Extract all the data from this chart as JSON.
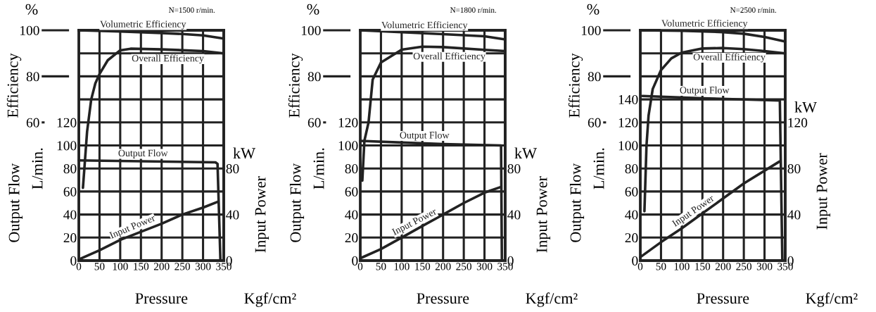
{
  "chart_data": [
    {
      "type": "line",
      "xlabel": "Pressure",
      "ylabel": "Efficiency",
      "y2label": "Input Power",
      "y3label": "Output Flow",
      "annotations": [
        "N=1500 r/min.",
        "%",
        "L/min.",
        "kW",
        "Kgf/cm²"
      ],
      "xlim": [
        0,
        350
      ],
      "xticks": [
        0,
        50,
        100,
        150,
        200,
        250,
        300,
        350
      ],
      "ylim": [
        0,
        100
      ],
      "yticks": [
        60,
        80,
        100
      ],
      "y3lim": [
        0,
        200
      ],
      "y3ticks": [
        0,
        20,
        40,
        60,
        80,
        100,
        120,
        {
          "value": 140,
          "label": null
        },
        {
          "value": 160,
          "label": null
        },
        {
          "value": 180,
          "label": null
        },
        {
          "value": 200,
          "label": null
        }
      ],
      "y2lim": [
        0,
        200
      ],
      "y2ticks": [
        0,
        40,
        80
      ],
      "grid": true,
      "line_style": "solid",
      "series": [
        {
          "name": "Volumetric Efficiency",
          "color": "#222222",
          "x": [
            0,
            100,
            200,
            250,
            300,
            350
          ],
          "values": [
            100,
            99.5,
            98.8,
            98.4,
            97.8,
            96.4
          ]
        },
        {
          "name": "Overall Efficiency",
          "color": "#222222",
          "x": [
            10,
            20,
            30,
            40,
            50,
            70,
            100,
            125,
            200,
            300,
            350
          ],
          "values": [
            31.6,
            56,
            70,
            77,
            81,
            87,
            91.3,
            92,
            91.7,
            91,
            90
          ]
        },
        {
          "name": "Output Flow",
          "color": "#222222",
          "axis": "y3",
          "x": [
            0,
            330,
            335,
            342
          ],
          "values": [
            87,
            85.3,
            84,
            0
          ]
        },
        {
          "name": "Input Power",
          "color": "#222222",
          "axis": "y2",
          "x": [
            0,
            50,
            100,
            150,
            200,
            250,
            300,
            335
          ],
          "values": [
            1,
            9,
            18,
            25,
            32,
            40,
            46,
            51
          ]
        }
      ]
    },
    {
      "type": "line",
      "xlabel": "Pressure",
      "ylabel": "Efficiency",
      "y2label": "Input Power",
      "y3label": "Output Flow",
      "annotations": [
        "N=1800 r/min.",
        "%",
        "L/min.",
        "kW",
        "Kgf/cm²"
      ],
      "xlim": [
        0,
        350
      ],
      "xticks": [
        0,
        50,
        100,
        150,
        200,
        250,
        300,
        350
      ],
      "ylim": [
        0,
        100
      ],
      "yticks": [
        60,
        80,
        100
      ],
      "y3lim": [
        0,
        200
      ],
      "y3ticks": [
        0,
        20,
        40,
        60,
        80,
        100,
        120,
        {
          "value": 140,
          "label": null
        },
        {
          "value": 160,
          "label": null
        },
        {
          "value": 180,
          "label": null
        },
        {
          "value": 200,
          "label": null
        }
      ],
      "y2lim": [
        0,
        200
      ],
      "y2ticks": [
        0,
        40,
        80
      ],
      "grid": true,
      "line_style": "solid",
      "series": [
        {
          "name": "Volumetric Efficiency",
          "color": "#222222",
          "x": [
            0,
            100,
            200,
            300,
            350
          ],
          "values": [
            100,
            99.2,
            98.3,
            97.4,
            96
          ]
        },
        {
          "name": "Overall Efficiency",
          "color": "#222222",
          "x": [
            5,
            10,
            20,
            30,
            50,
            100,
            150,
            200,
            300,
            350
          ],
          "values": [
            34.7,
            52,
            60,
            78.6,
            86,
            91.6,
            92.9,
            92.7,
            91.5,
            91
          ]
        },
        {
          "name": "Output Flow",
          "color": "#222222",
          "axis": "y3",
          "x": [
            0,
            100,
            200,
            340,
            342
          ],
          "values": [
            104,
            102.5,
            101.2,
            100,
            0
          ]
        },
        {
          "name": "Input Power",
          "color": "#222222",
          "axis": "y2",
          "x": [
            0,
            50,
            100,
            150,
            200,
            250,
            300,
            340
          ],
          "values": [
            2,
            10,
            20,
            30,
            40,
            50,
            59,
            64
          ]
        }
      ]
    },
    {
      "type": "line",
      "xlabel": "Pressure",
      "ylabel": "Efficiency",
      "y2label": "Input Power",
      "y3label": "Output Flow",
      "annotations": [
        "N=2500 r/min.",
        "%",
        "L/min.",
        "kW",
        "Kgf/cm²"
      ],
      "xlim": [
        0,
        350
      ],
      "xticks": [
        0,
        50,
        100,
        150,
        200,
        250,
        300,
        350
      ],
      "ylim": [
        0,
        100
      ],
      "yticks": [
        60,
        80,
        100
      ],
      "y3lim": [
        0,
        200
      ],
      "y3ticks": [
        0,
        20,
        40,
        60,
        80,
        100,
        120,
        140,
        {
          "value": 160,
          "label": null
        },
        {
          "value": 180,
          "label": null
        },
        {
          "value": 200,
          "label": null
        }
      ],
      "y2lim": [
        0,
        200
      ],
      "y2ticks": [
        0,
        40,
        80,
        120
      ],
      "grid": true,
      "line_style": "solid",
      "series": [
        {
          "name": "Volumetric Efficiency",
          "color": "#222222",
          "x": [
            0,
            100,
            200,
            250,
            300,
            350
          ],
          "values": [
            100,
            99.8,
            99.2,
            98.5,
            97.1,
            95.1
          ]
        },
        {
          "name": "Overall Efficiency",
          "color": "#222222",
          "x": [
            10,
            15,
            20,
            30,
            50,
            75,
            100,
            150,
            200,
            250,
            300,
            350
          ],
          "values": [
            21.4,
            50,
            63,
            74.5,
            82.7,
            87.8,
            90.3,
            92.1,
            92.3,
            91.8,
            91,
            90
          ]
        },
        {
          "name": "Output Flow",
          "color": "#222222",
          "axis": "y3",
          "x": [
            5,
            150,
            337,
            343
          ],
          "values": [
            143,
            141,
            139,
            0
          ]
        },
        {
          "name": "Input Power",
          "color": "#222222",
          "axis": "y2",
          "x": [
            0,
            50,
            100,
            150,
            200,
            250,
            336
          ],
          "values": [
            3,
            16,
            28,
            41,
            54,
            67,
            86
          ]
        }
      ]
    }
  ]
}
